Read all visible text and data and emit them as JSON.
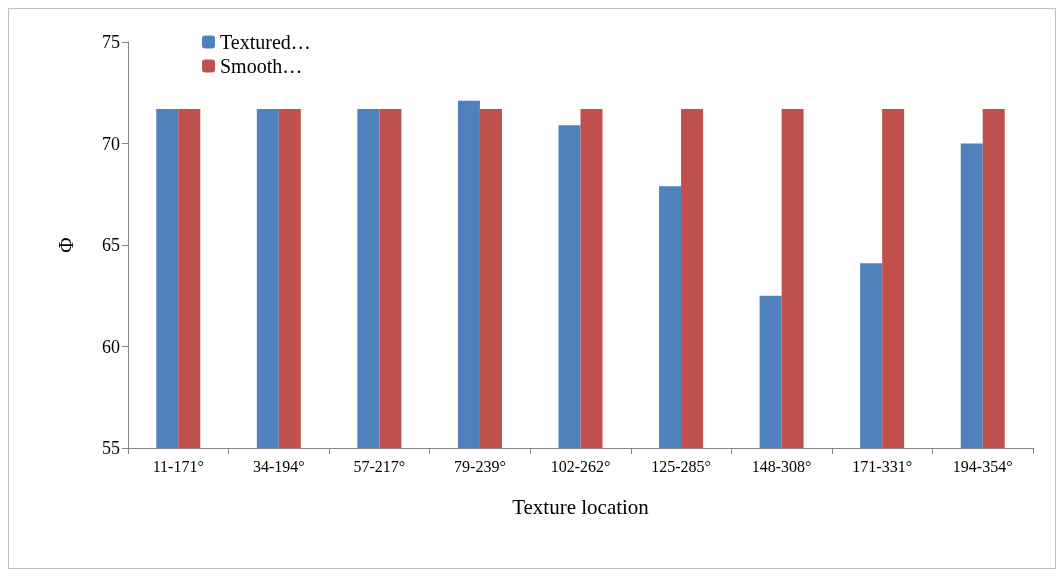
{
  "chart_data": {
    "type": "bar",
    "xlabel": "Texture location",
    "ylabel": "Φ",
    "categories": [
      "11-171°",
      "34-194°",
      "57-217°",
      "79-239°",
      "102-262°",
      "125-285°",
      "148-308°",
      "171-331°",
      "194-354°"
    ],
    "series": [
      {
        "name": "Textured…",
        "color": "#4f81bd",
        "values": [
          71.7,
          71.7,
          71.7,
          72.1,
          70.9,
          67.9,
          62.5,
          64.1,
          70.0
        ]
      },
      {
        "name": "Smooth…",
        "color": "#c0504d",
        "values": [
          71.7,
          71.7,
          71.7,
          71.7,
          71.7,
          71.7,
          71.7,
          71.7,
          71.7
        ]
      }
    ],
    "ylim": [
      55,
      75
    ],
    "yticks": [
      55,
      60,
      65,
      70,
      75
    ],
    "grid": false,
    "legend": "top left"
  }
}
